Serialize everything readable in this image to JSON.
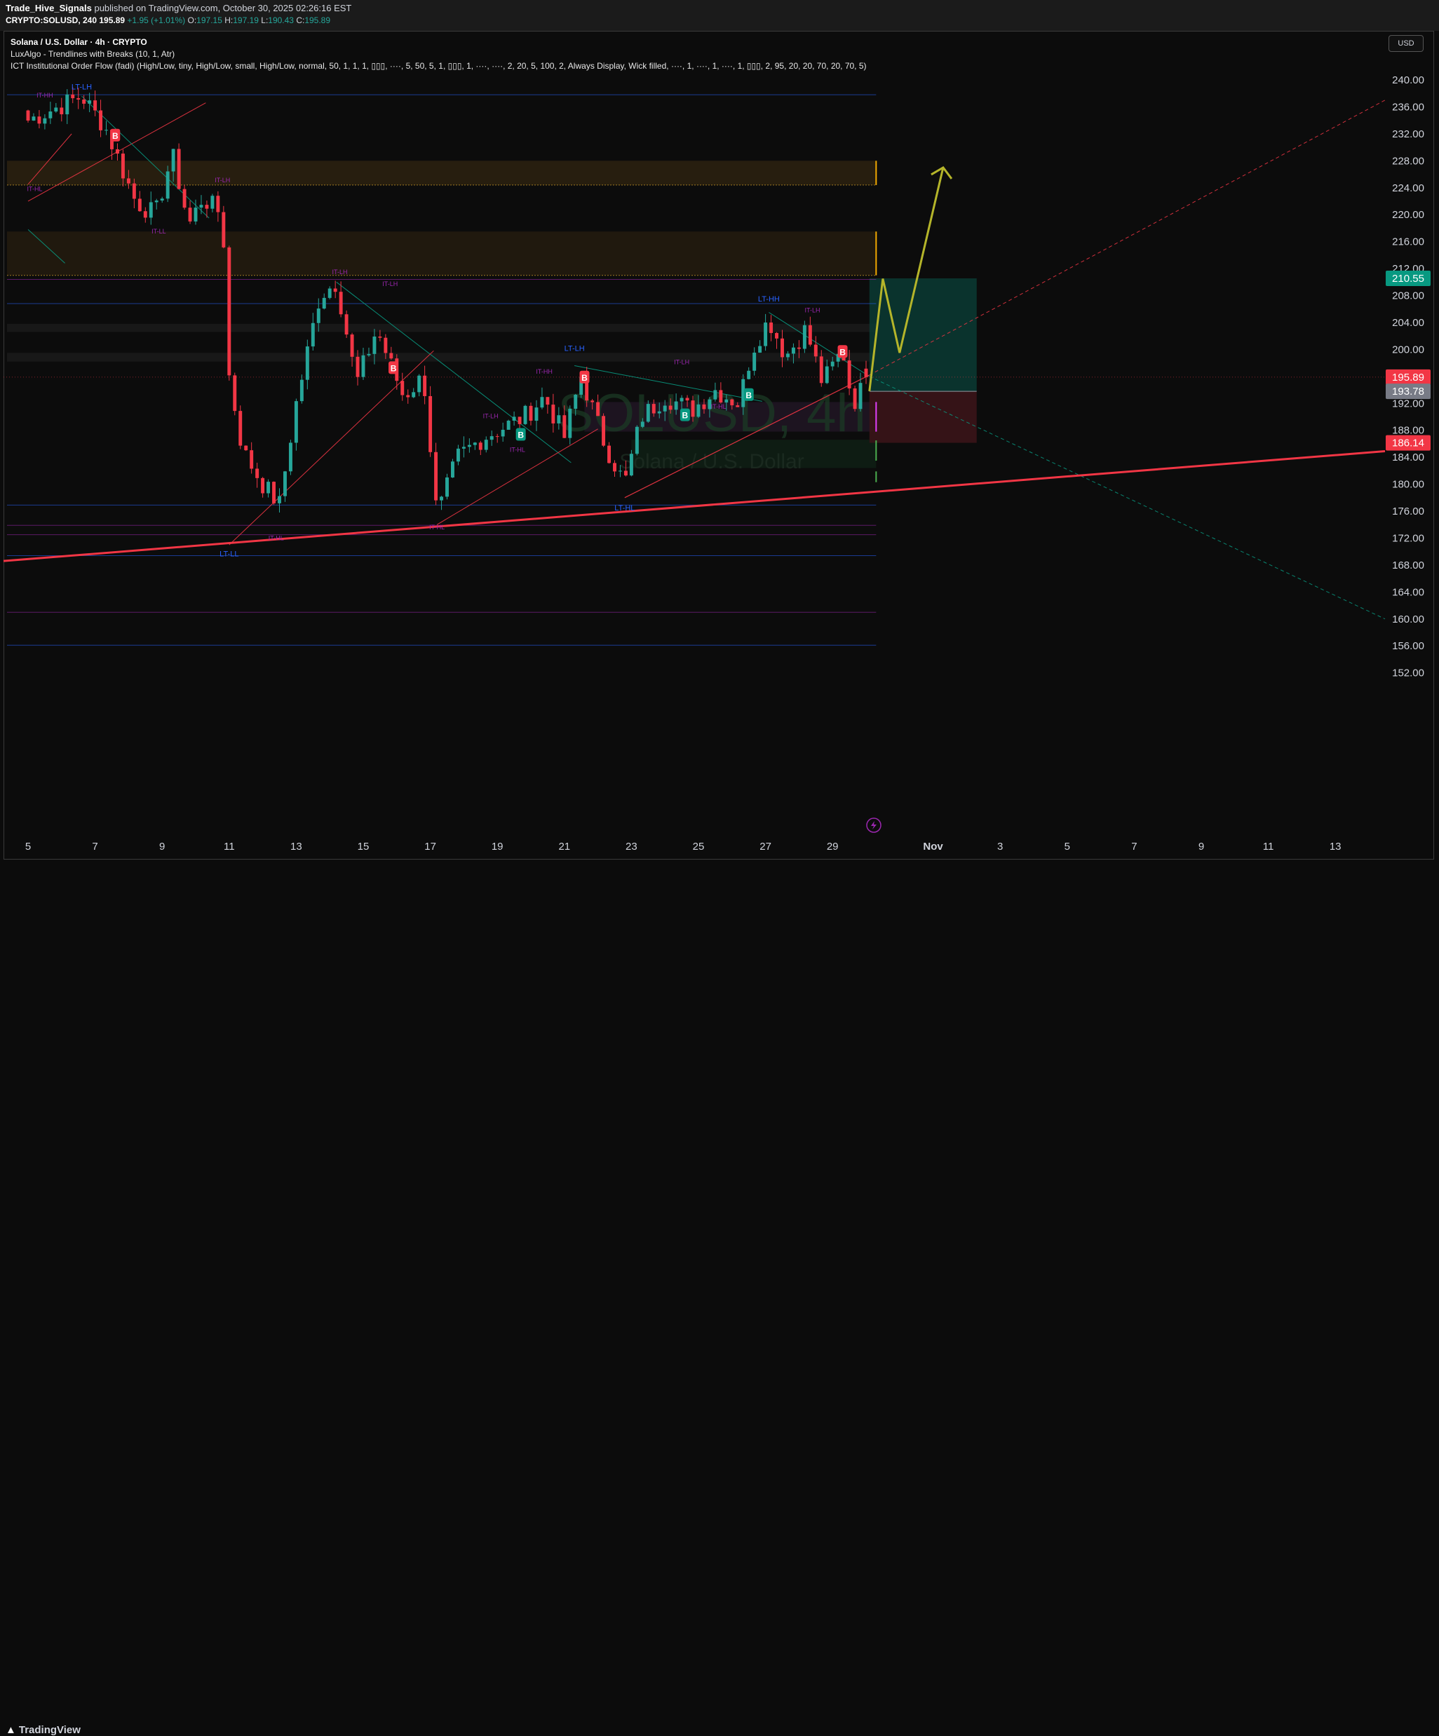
{
  "header": {
    "author": "Trade_Hive_Signals",
    "published_text": "published on TradingView.com, October 30, 2025 02:26:16 EST",
    "symbol_line": "CRYPTO:SOLUSD, 240",
    "price": "195.89",
    "change": "+1.95 (+1.01%)",
    "open_label": "O:",
    "open": "197.15",
    "high_label": "H:",
    "high": "197.19",
    "low_label": "L:",
    "low": "190.43",
    "close_label": "C:",
    "close": "195.89"
  },
  "legend": {
    "symbol_title": "Solana / U.S. Dollar · 4h · CRYPTO",
    "indicator_1": "LuxAlgo - Trendlines with Breaks (10, 1, Atr)",
    "indicator_2": "ICT Institutional Order Flow (fadi) (High/Low, tiny, High/Low, small, High/Low, normal, 50, 1, 1, 1, ▯▯▯, ····, 5, 50, 5, 1, ▯▯▯, 1, ····, ····, 2, 20, 5, 100, 2, Always Display, Wick filled, ····, 1, ····, 1, ····, 1, ▯▯▯, 2, 95, 20, 20, 70, 20, 70, 5)"
  },
  "currency_button": "USD",
  "watermark": {
    "symbol": "SOLUSD, 4h",
    "name": "Solana / U.S. Dollar"
  },
  "footer": {
    "brand": "TradingView"
  },
  "colors": {
    "up": "#26a69a",
    "down": "#f23645",
    "background": "#0c0c0c",
    "projection": "#b5b52a"
  },
  "chart_data": {
    "type": "candlestick",
    "timeframe": "4h",
    "x_tick_labels": [
      "5",
      "7",
      "9",
      "11",
      "13",
      "15",
      "17",
      "19",
      "21",
      "23",
      "25",
      "27",
      "29",
      "Nov",
      "3",
      "5",
      "7",
      "9",
      "11",
      "13"
    ],
    "ylim": [
      150,
      243
    ],
    "y_ticks": [
      240,
      236,
      232,
      228,
      224,
      220,
      216,
      212,
      208,
      204,
      200,
      196,
      192,
      188,
      184,
      180,
      176,
      172,
      168,
      164,
      160,
      156,
      152
    ],
    "y_tick_labels": [
      "240.00",
      "236.00",
      "232.00",
      "228.00",
      "224.00",
      "220.00",
      "216.00",
      "212.00",
      "208.00",
      "204.00",
      "200.00",
      "192.00",
      "188.00",
      "184.00",
      "180.00",
      "176.00",
      "172.00",
      "168.00",
      "164.00",
      "160.00",
      "156.00",
      "152.00"
    ],
    "price_tags": [
      {
        "value": 210.55,
        "label": "210.55",
        "color": "#089981"
      },
      {
        "value": 195.89,
        "label": "195.89",
        "color": "#f23645"
      },
      {
        "value": 193.78,
        "label": "193.78",
        "color": "#787b86"
      },
      {
        "value": 186.14,
        "label": "186.14",
        "color": "#f23645"
      }
    ],
    "long_position": {
      "entry": 193.78,
      "target": 210.55,
      "stop": 186.14
    },
    "anchors": [
      {
        "day": 5,
        "price": 234
      },
      {
        "day": 6.6,
        "price": 237.6
      },
      {
        "day": 7.3,
        "price": 233
      },
      {
        "day": 8.2,
        "price": 222
      },
      {
        "day": 8.8,
        "price": 220
      },
      {
        "day": 9.3,
        "price": 229
      },
      {
        "day": 9.8,
        "price": 218.5
      },
      {
        "day": 10.2,
        "price": 222.5
      },
      {
        "day": 10.8,
        "price": 220
      },
      {
        "day": 11,
        "price": 196
      },
      {
        "day": 11.4,
        "price": 185
      },
      {
        "day": 12.0,
        "price": 180
      },
      {
        "day": 12.5,
        "price": 177
      },
      {
        "day": 13.0,
        "price": 192
      },
      {
        "day": 13.7,
        "price": 208
      },
      {
        "day": 14.2,
        "price": 210
      },
      {
        "day": 14.8,
        "price": 195
      },
      {
        "day": 15.4,
        "price": 203
      },
      {
        "day": 16.2,
        "price": 193
      },
      {
        "day": 16.8,
        "price": 196
      },
      {
        "day": 17.2,
        "price": 175
      },
      {
        "day": 17.8,
        "price": 184
      },
      {
        "day": 18.6,
        "price": 187
      },
      {
        "day": 19.8,
        "price": 190
      },
      {
        "day": 20.4,
        "price": 193
      },
      {
        "day": 21.0,
        "price": 187
      },
      {
        "day": 21.5,
        "price": 196
      },
      {
        "day": 22.2,
        "price": 186
      },
      {
        "day": 22.8,
        "price": 180
      },
      {
        "day": 23.3,
        "price": 190
      },
      {
        "day": 24.0,
        "price": 193
      },
      {
        "day": 24.8,
        "price": 191
      },
      {
        "day": 25.5,
        "price": 194
      },
      {
        "day": 26.2,
        "price": 192
      },
      {
        "day": 26.6,
        "price": 200
      },
      {
        "day": 27.1,
        "price": 204.5
      },
      {
        "day": 27.6,
        "price": 199
      },
      {
        "day": 28.2,
        "price": 203
      },
      {
        "day": 28.7,
        "price": 195
      },
      {
        "day": 29.3,
        "price": 200
      },
      {
        "day": 29.6,
        "price": 192
      },
      {
        "day": 30.1,
        "price": 195.89
      }
    ],
    "projection_path": [
      {
        "day": 30.1,
        "price": 193.8
      },
      {
        "day": 30.5,
        "price": 210.5
      },
      {
        "day": 31.0,
        "price": 199.5
      },
      {
        "day": 32.3,
        "price": 227
      }
    ],
    "structure_labels": [
      {
        "text": "LT-LH",
        "day": 6.6,
        "price": 238.6,
        "color": "#2962ff"
      },
      {
        "text": "IT-HH",
        "day": 5.5,
        "price": 237.4,
        "color": "#9c27b0"
      },
      {
        "text": "IT-HL",
        "day": 5.2,
        "price": 223.5,
        "color": "#9c27b0"
      },
      {
        "text": "IT-LH",
        "day": 10.8,
        "price": 224.8,
        "color": "#9c27b0"
      },
      {
        "text": "IT-LL",
        "day": 8.9,
        "price": 217.2,
        "color": "#9c27b0"
      },
      {
        "text": "IT-LH",
        "day": 14.3,
        "price": 211.2,
        "color": "#9c27b0"
      },
      {
        "text": "IT-LH",
        "day": 15.8,
        "price": 209.4,
        "color": "#9c27b0"
      },
      {
        "text": "LT-LL",
        "day": 11.0,
        "price": 169.3,
        "color": "#2962ff"
      },
      {
        "text": "IT-HL",
        "day": 12.4,
        "price": 171.7,
        "color": "#9c27b0"
      },
      {
        "text": "IT-HL",
        "day": 17.2,
        "price": 173.3,
        "color": "#9c27b0"
      },
      {
        "text": "IT-LH",
        "day": 18.8,
        "price": 189.8,
        "color": "#9c27b0"
      },
      {
        "text": "IT-HL",
        "day": 19.6,
        "price": 184.8,
        "color": "#9c27b0"
      },
      {
        "text": "IT-HH",
        "day": 20.4,
        "price": 196.4,
        "color": "#9c27b0"
      },
      {
        "text": "LT-LH",
        "day": 21.3,
        "price": 199.8,
        "color": "#2962ff"
      },
      {
        "text": "LT-HL",
        "day": 22.8,
        "price": 176.1,
        "color": "#2962ff"
      },
      {
        "text": "IT-LH",
        "day": 24.5,
        "price": 197.8,
        "color": "#9c27b0"
      },
      {
        "text": "IT-HL",
        "day": 25.6,
        "price": 191.2,
        "color": "#9c27b0"
      },
      {
        "text": "LT-HH",
        "day": 27.1,
        "price": 207.1,
        "color": "#2962ff"
      },
      {
        "text": "IT-LH",
        "day": 28.4,
        "price": 205.5,
        "color": "#9c27b0"
      }
    ],
    "signals": [
      {
        "type": "B",
        "day": 7.6,
        "price": 231.8,
        "color": "#f23645"
      },
      {
        "type": "B",
        "day": 15.9,
        "price": 197.3,
        "color": "#f23645"
      },
      {
        "type": "B",
        "day": 21.6,
        "price": 195.9,
        "color": "#f23645"
      },
      {
        "type": "B",
        "day": 29.3,
        "price": 199.7,
        "color": "#f23645"
      },
      {
        "type": "B",
        "day": 19.7,
        "price": 187.4,
        "color": "#089981"
      },
      {
        "type": "B",
        "day": 24.6,
        "price": 190.3,
        "color": "#089981"
      },
      {
        "type": "B",
        "day": 26.5,
        "price": 193.3,
        "color": "#089981"
      }
    ]
  }
}
